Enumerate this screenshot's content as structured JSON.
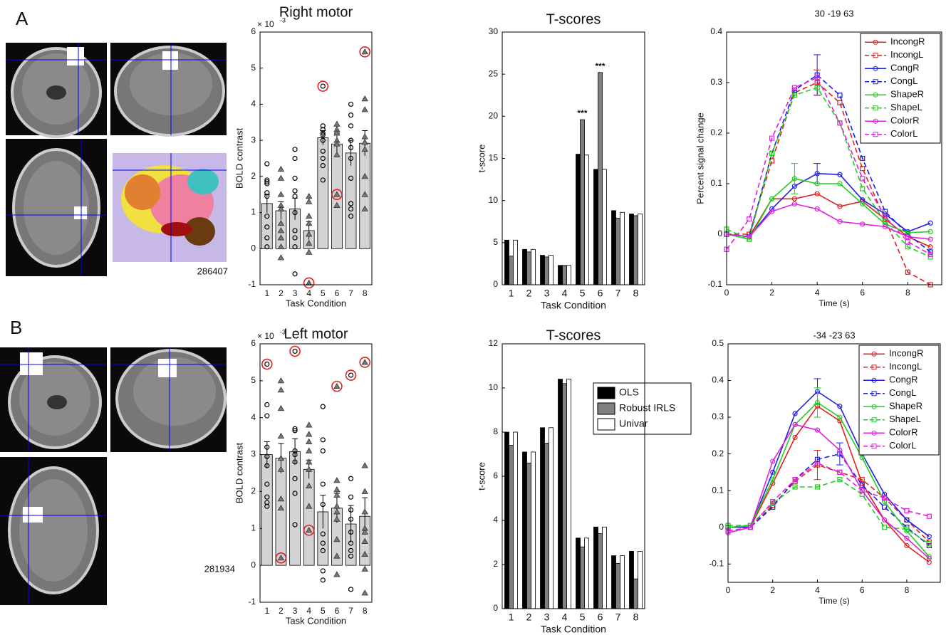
{
  "panel_labels": [
    "A",
    "B"
  ],
  "image_labels": [
    "286407",
    "281934"
  ],
  "chart_data": [
    {
      "type": "bar",
      "title": "Right motor",
      "y_multiplier": {
        "base": "× 10",
        "exponent": "-3"
      },
      "x_label": "Task Condition",
      "y_label": "BOLD contrast",
      "categories": [
        "1",
        "2",
        "3",
        "4",
        "5",
        "6",
        "7",
        "8"
      ],
      "values": [
        1.25,
        1.05,
        1.1,
        0.5,
        3.07,
        2.9,
        2.65,
        2.92
      ],
      "errors": [
        0.25,
        0.25,
        0.3,
        0.25,
        0.2,
        0.3,
        0.35,
        0.35
      ],
      "color": "#d3d3d3",
      "markers": [
        "circle",
        "triangle",
        "circle",
        "triangle",
        "circle",
        "triangle",
        "circle",
        "triangle"
      ],
      "points": [
        [
          2.35,
          1.9,
          1.85,
          1.8,
          1.55,
          1.45,
          0.9,
          0.6,
          0.3,
          0.05
        ],
        [
          2.2,
          1.95,
          1.5,
          1.2,
          1.1,
          0.7,
          0.5,
          0.3,
          0.05,
          -0.25
        ],
        [
          2.75,
          2.5,
          1.95,
          1.6,
          1.45,
          1.0,
          0.5,
          0.3,
          0.05,
          -0.7
        ],
        [
          1.45,
          1.3,
          0.9,
          0.7,
          0.4,
          0.15,
          -0.1,
          -0.95
        ],
        [
          4.5,
          3.4,
          3.3,
          3.2,
          3.15,
          3.0,
          2.7,
          2.5,
          2.3,
          1.9
        ],
        [
          3.45,
          3.3,
          3.2,
          3.0,
          2.9,
          2.6,
          1.5,
          1.2
        ],
        [
          4.0,
          3.7,
          3.4,
          3.0,
          2.8,
          2.5,
          1.95,
          1.25,
          1.1,
          0.9
        ],
        [
          5.45,
          4.15,
          3.85,
          3.1,
          2.95,
          2.75,
          2.0,
          1.5,
          1.1
        ]
      ],
      "outliers": {
        "categories": [
          "4",
          "5",
          "6",
          "8"
        ],
        "values": [
          -0.95,
          4.5,
          1.5,
          5.45
        ],
        "color": "#e02020"
      },
      "ylim": [
        -1,
        6
      ],
      "yticks": [
        -1,
        0,
        1,
        2,
        3,
        4,
        5,
        6
      ]
    },
    {
      "type": "bar",
      "title": "T-scores",
      "x_label": "Task Condition",
      "y_label": "t-score",
      "categories": [
        "1",
        "2",
        "3",
        "4",
        "5",
        "6",
        "7",
        "8"
      ],
      "series": [
        {
          "color": "#000000",
          "values": [
            5.3,
            4.2,
            3.5,
            2.3,
            15.5,
            13.7,
            8.8,
            8.4
          ]
        },
        {
          "color": "#808080",
          "values": [
            3.4,
            3.9,
            3.3,
            2.3,
            19.6,
            25.2,
            7.9,
            8.2
          ]
        },
        {
          "color": "#ffffff",
          "values": [
            5.3,
            4.2,
            3.5,
            2.3,
            15.4,
            13.7,
            8.6,
            8.4
          ]
        }
      ],
      "annotations": [
        {
          "text": "***",
          "category": "5"
        },
        {
          "text": "***",
          "category": "6"
        }
      ],
      "ylim": [
        0,
        30
      ],
      "yticks": [
        0,
        5,
        10,
        15,
        20,
        25,
        30
      ]
    },
    {
      "type": "line",
      "title": "30 -19 63",
      "x_label": "Time (s)",
      "y_label": "Percent signal change",
      "x": [
        0,
        1,
        2,
        3,
        4,
        5,
        6,
        7,
        8,
        9
      ],
      "series": [
        {
          "name": "IncongR",
          "color": "#e02020",
          "dashed": false,
          "marker": "circle",
          "values": [
            0,
            -0.005,
            0.07,
            0.07,
            0.08,
            0.055,
            0.065,
            0.03,
            -0.005,
            -0.025
          ]
        },
        {
          "name": "IncongL",
          "color": "#e02020",
          "dashed": true,
          "marker": "square",
          "values": [
            0,
            0,
            0.145,
            0.28,
            0.3,
            0.26,
            0.13,
            0.03,
            -0.075,
            -0.1
          ],
          "errors": [
            null,
            null,
            null,
            null,
            0.025,
            null,
            null,
            null,
            null,
            null
          ]
        },
        {
          "name": "CongR",
          "color": "#2020e0",
          "dashed": false,
          "marker": "circle",
          "values": [
            0,
            -0.005,
            0.05,
            0.095,
            0.12,
            0.118,
            0.068,
            0.04,
            0.005,
            0.022
          ],
          "errors": [
            null,
            null,
            null,
            null,
            0.02,
            null,
            null,
            null,
            null,
            null
          ]
        },
        {
          "name": "CongL",
          "color": "#2020e0",
          "dashed": true,
          "marker": "square",
          "values": [
            0,
            -0.005,
            0.16,
            0.285,
            0.315,
            0.275,
            0.15,
            0.045,
            0,
            -0.035
          ],
          "errors": [
            null,
            null,
            null,
            null,
            0.04,
            null,
            null,
            null,
            null,
            null
          ]
        },
        {
          "name": "ShapeR",
          "color": "#20d020",
          "dashed": false,
          "marker": "circle",
          "values": [
            0,
            -0.01,
            0.07,
            0.11,
            0.1,
            0.1,
            0.06,
            0.02,
            0.003,
            0.005
          ],
          "errors": [
            null,
            null,
            null,
            0.03,
            null,
            null,
            null,
            null,
            null,
            null
          ]
        },
        {
          "name": "ShapeL",
          "color": "#20d020",
          "dashed": true,
          "marker": "square",
          "values": [
            0.01,
            -0.01,
            0.16,
            0.275,
            0.29,
            0.22,
            0.09,
            0.025,
            -0.025,
            -0.045
          ]
        },
        {
          "name": "ColorR",
          "color": "#e020e0",
          "dashed": false,
          "marker": "circle",
          "values": [
            0,
            -0.005,
            0.045,
            0.06,
            0.05,
            0.025,
            0.02,
            0.015,
            -0.005,
            -0.01
          ]
        },
        {
          "name": "ColorL",
          "color": "#e020e0",
          "dashed": true,
          "marker": "square",
          "values": [
            -0.03,
            0.03,
            0.19,
            0.29,
            0.31,
            0.22,
            0.11,
            0.035,
            -0.015,
            -0.04
          ]
        }
      ],
      "legend": "upper right",
      "xlim": [
        0,
        9.5
      ],
      "xticks": [
        0,
        2,
        4,
        6,
        8
      ],
      "ylim": [
        -0.1,
        0.4
      ],
      "yticks": [
        -0.1,
        0,
        0.1,
        0.2,
        0.3,
        0.4
      ]
    },
    {
      "type": "bar",
      "title": "Left motor",
      "y_multiplier": {
        "base": "× 10",
        "exponent": "-3"
      },
      "x_label": "Task Condition",
      "y_label": "BOLD contrast",
      "categories": [
        "1",
        "2",
        "3",
        "4",
        "5",
        "6",
        "7",
        "8"
      ],
      "values": [
        3.0,
        2.9,
        3.08,
        2.6,
        1.45,
        1.55,
        1.12,
        1.33
      ],
      "errors": [
        0.35,
        0.4,
        0.35,
        0.25,
        0.45,
        0.4,
        0.5,
        0.5
      ],
      "color": "#d3d3d3",
      "markers": [
        "circle",
        "triangle",
        "circle",
        "triangle",
        "circle",
        "triangle",
        "circle",
        "triangle"
      ],
      "points": [
        [
          5.45,
          4.35,
          4.05,
          3.2,
          2.95,
          2.7,
          2.2,
          1.85,
          1.7,
          1.6
        ],
        [
          5.0,
          4.75,
          4.25,
          3.5,
          2.9,
          2.6,
          1.8,
          1.55,
          0.2
        ],
        [
          5.8,
          3.7,
          3.65,
          3.1,
          3.0,
          2.8,
          2.35,
          1.95,
          1.1
        ],
        [
          3.8,
          3.55,
          3.35,
          3.1,
          2.8,
          2.6,
          2.15,
          1.6,
          0.95
        ],
        [
          4.3,
          3.4,
          3.1,
          2.2,
          1.65,
          0.85,
          0.6,
          0.4,
          -0.15,
          -0.4
        ],
        [
          4.85,
          2.3,
          2.05,
          1.9,
          1.6,
          1.45,
          1.25,
          0.7,
          0.25,
          -0.25
        ],
        [
          5.15,
          2.35,
          1.85,
          1.5,
          1.25,
          0.9,
          0.6,
          0.4,
          0.25,
          -0.65
        ],
        [
          5.5,
          2.7,
          2.0,
          1.45,
          1.0,
          0.9,
          0.65,
          0.3,
          -0.1,
          -0.75
        ]
      ],
      "outliers": {
        "categories": [
          "1",
          "2",
          "3",
          "4",
          "6",
          "7",
          "8"
        ],
        "values": [
          5.45,
          0.2,
          5.8,
          0.95,
          4.85,
          5.15,
          5.5
        ],
        "color": "#e02020"
      },
      "ylim": [
        -1,
        6
      ],
      "yticks": [
        -1,
        0,
        1,
        2,
        3,
        4,
        5,
        6
      ]
    },
    {
      "type": "bar",
      "title": "T-scores",
      "x_label": "Task Condition",
      "y_label": "t-score",
      "categories": [
        "1",
        "2",
        "3",
        "4",
        "5",
        "6",
        "7",
        "8"
      ],
      "series": [
        {
          "name": "OLS",
          "color": "#000000",
          "values": [
            8.0,
            7.1,
            8.2,
            10.4,
            3.2,
            3.7,
            2.4,
            2.6
          ]
        },
        {
          "name": "Robust IRLS",
          "color": "#808080",
          "values": [
            7.4,
            6.6,
            7.5,
            10.2,
            2.8,
            3.4,
            2.05,
            1.35
          ]
        },
        {
          "name": "Univar",
          "color": "#ffffff",
          "values": [
            8.0,
            7.1,
            8.2,
            10.4,
            3.2,
            3.7,
            2.4,
            2.6
          ]
        }
      ],
      "legend": "upper right",
      "ylim": [
        0,
        12
      ],
      "yticks": [
        0,
        2,
        4,
        6,
        8,
        10,
        12
      ]
    },
    {
      "type": "line",
      "title": "-34 -23 63",
      "x_label": "Time (s)",
      "x": [
        0,
        1,
        2,
        3,
        4,
        5,
        6,
        7,
        8,
        9
      ],
      "series": [
        {
          "name": "IncongR",
          "color": "#e02020",
          "dashed": false,
          "marker": "circle",
          "values": [
            0,
            0,
            0.12,
            0.245,
            0.33,
            0.29,
            0.12,
            0.02,
            -0.05,
            -0.095
          ]
        },
        {
          "name": "IncongL",
          "color": "#e02020",
          "dashed": true,
          "marker": "square",
          "values": [
            0,
            0,
            0.06,
            0.125,
            0.17,
            0.15,
            0.13,
            0.08,
            0.02,
            -0.04
          ],
          "errors": [
            null,
            null,
            null,
            null,
            0.04,
            null,
            null,
            null,
            null,
            null
          ]
        },
        {
          "name": "CongR",
          "color": "#2020e0",
          "dashed": false,
          "marker": "circle",
          "values": [
            0,
            0,
            0.15,
            0.31,
            0.37,
            0.33,
            0.2,
            0.09,
            0.02,
            -0.025
          ],
          "errors": [
            null,
            null,
            null,
            null,
            0.035,
            null,
            null,
            null,
            null,
            null
          ]
        },
        {
          "name": "CongL",
          "color": "#2020e0",
          "dashed": true,
          "marker": "square",
          "values": [
            0,
            0,
            0.055,
            0.13,
            0.185,
            0.2,
            0.115,
            0.055,
            0,
            -0.05
          ],
          "errors": [
            null,
            null,
            null,
            null,
            null,
            0.03,
            null,
            null,
            null,
            null
          ]
        },
        {
          "name": "ShapeR",
          "color": "#20d020",
          "dashed": false,
          "marker": "circle",
          "values": [
            0,
            0.005,
            0.13,
            0.28,
            0.34,
            0.3,
            0.19,
            0.07,
            -0.01,
            -0.08
          ],
          "errors": [
            null,
            null,
            null,
            null,
            0.04,
            null,
            null,
            null,
            null,
            null
          ]
        },
        {
          "name": "ShapeL",
          "color": "#20d020",
          "dashed": true,
          "marker": "square",
          "values": [
            0.005,
            0.005,
            0.065,
            0.11,
            0.11,
            0.13,
            0.09,
            0,
            -0.005,
            -0.045
          ]
        },
        {
          "name": "ColorR",
          "color": "#e020e0",
          "dashed": false,
          "marker": "circle",
          "values": [
            -0.015,
            0,
            0.18,
            0.28,
            0.265,
            0.21,
            0.1,
            0.02,
            -0.03,
            -0.085
          ]
        },
        {
          "name": "ColorL",
          "color": "#e020e0",
          "dashed": true,
          "marker": "square",
          "values": [
            -0.01,
            0,
            0.07,
            0.13,
            0.175,
            0.15,
            0.1,
            0.08,
            0.045,
            0.03
          ]
        }
      ],
      "legend": "upper right",
      "xlim": [
        0,
        9.5
      ],
      "xticks": [
        0,
        2,
        4,
        6,
        8
      ],
      "ylim": [
        -0.15,
        0.5
      ],
      "yticks": [
        -0.1,
        0,
        0.1,
        0.2,
        0.3,
        0.4,
        0.5
      ]
    }
  ]
}
